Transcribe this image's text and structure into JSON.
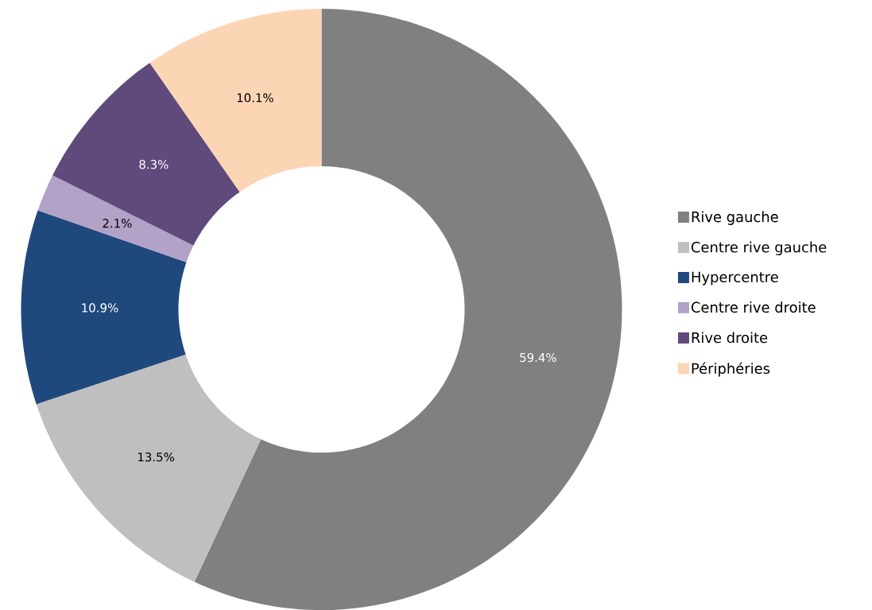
{
  "chart_data": {
    "type": "donut",
    "categories": [
      "Rive gauche",
      "Centre rive gauche",
      "Hypercentre",
      "Centre rive droite",
      "Rive droite",
      "Périphéries"
    ],
    "values": [
      59.4,
      13.5,
      10.9,
      2.1,
      8.3,
      10.1
    ],
    "colors": [
      "#808080",
      "#bfbfbf",
      "#1f497d",
      "#b3a2c7",
      "#604a7b",
      "#fcd5b5"
    ],
    "value_labels": [
      "59.4%",
      "13.5%",
      "10.9%",
      "2.1%",
      "8.3%",
      "10.1%"
    ],
    "legend": "right"
  }
}
